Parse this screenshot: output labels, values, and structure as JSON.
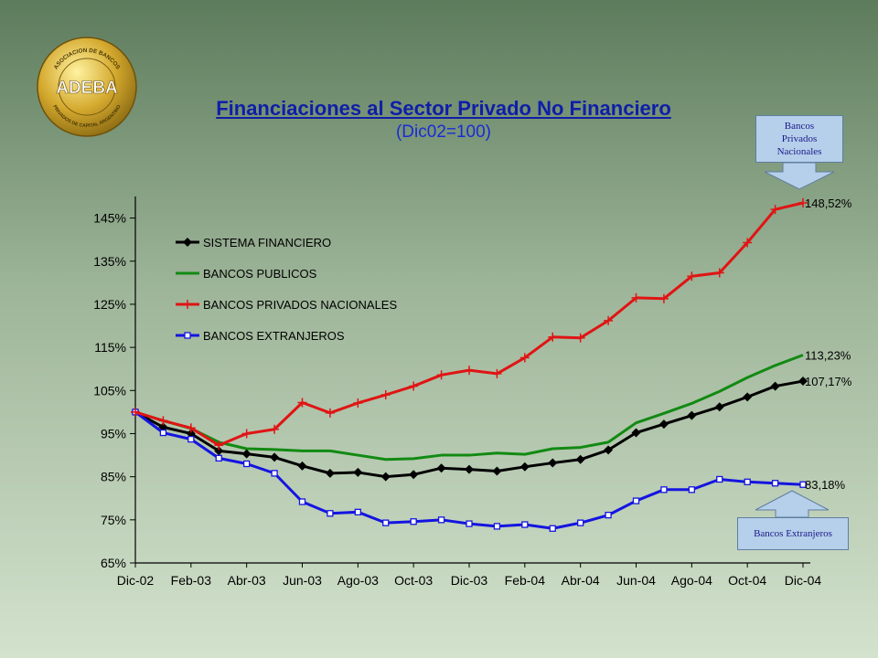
{
  "header": {
    "title": "Financiaciones al Sector Privado No Financiero",
    "subtitle": "(Dic02=100)"
  },
  "logo": {
    "main_text": "ADEBA",
    "ring_top": "ASOCIACION DE BANCOS",
    "ring_bottom": "PRIVADOS DE CAPITAL ARGENTINO"
  },
  "callouts": {
    "top": [
      "Bancos",
      "Privados Nacionales"
    ],
    "bottom": "Bancos Extranjeros"
  },
  "colors": {
    "sistema": "#000000",
    "publicos": "#128a12",
    "privados": "#e01414",
    "extranjeros": "#1414e0"
  },
  "chart_data": {
    "type": "line",
    "title": "Financiaciones al Sector Privado No Financiero",
    "subtitle": "(Dic02=100)",
    "x": [
      "Dic-02",
      "Ene-03",
      "Feb-03",
      "Mar-03",
      "Abr-03",
      "May-03",
      "Jun-03",
      "Jul-03",
      "Ago-03",
      "Sep-03",
      "Oct-03",
      "Nov-03",
      "Dic-03",
      "Ene-04",
      "Feb-04",
      "Mar-04",
      "Abr-04",
      "May-04",
      "Jun-04",
      "Jul-04",
      "Ago-04",
      "Sep-04",
      "Oct-04",
      "Nov-04",
      "Dic-04"
    ],
    "x_tick_labels": [
      "Dic-02",
      "Feb-03",
      "Abr-03",
      "Jun-03",
      "Ago-03",
      "Oct-03",
      "Dic-03",
      "Feb-04",
      "Abr-04",
      "Jun-04",
      "Ago-04",
      "Oct-04",
      "Dic-04"
    ],
    "y_ticks": [
      65,
      75,
      85,
      95,
      105,
      115,
      125,
      135,
      145
    ],
    "y_tick_labels": [
      "65%",
      "75%",
      "85%",
      "95%",
      "105%",
      "115%",
      "125%",
      "135%",
      "145%"
    ],
    "ylim": [
      65,
      150
    ],
    "legend_position": "top-left",
    "series": [
      {
        "name": "SISTEMA FINANCIERO",
        "key": "sistema",
        "values": [
          100,
          96.5,
          95,
          91,
          90.3,
          89.5,
          87.5,
          85.8,
          86,
          85,
          85.5,
          87,
          86.7,
          86.3,
          87.3,
          88.2,
          89,
          91.2,
          95.2,
          97.2,
          99.2,
          101.2,
          103.5,
          106,
          107.17
        ],
        "end_label": "107,17%"
      },
      {
        "name": "BANCOS PUBLICOS",
        "key": "publicos",
        "values": [
          100,
          98,
          96.2,
          93,
          91.5,
          91.3,
          91,
          91,
          90,
          89,
          89.2,
          90,
          90,
          90.5,
          90.2,
          91.5,
          91.8,
          93,
          97.5,
          99.7,
          102,
          104.8,
          108,
          110.8,
          113.23
        ],
        "end_label": "113,23%"
      },
      {
        "name": "BANCOS PRIVADOS NACIONALES",
        "key": "privados",
        "values": [
          100,
          98,
          96.3,
          92.3,
          95,
          96,
          102.2,
          99.8,
          102.1,
          104,
          106,
          108.6,
          109.7,
          108.9,
          112.6,
          117.4,
          117.2,
          121.2,
          126.5,
          126.3,
          131.5,
          132.3,
          139.3,
          147,
          148.52
        ],
        "end_label": "148,52%"
      },
      {
        "name": "BANCOS  EXTRANJEROS",
        "key": "extranjeros",
        "values": [
          100,
          95.2,
          93.7,
          89.3,
          88,
          85.8,
          79.2,
          76.5,
          76.8,
          74.3,
          74.6,
          75,
          74.1,
          73.5,
          73.9,
          73,
          74.3,
          76.1,
          79.4,
          82,
          82,
          84.4,
          83.8,
          83.5,
          83.18
        ],
        "end_label": "83,18%"
      }
    ]
  }
}
